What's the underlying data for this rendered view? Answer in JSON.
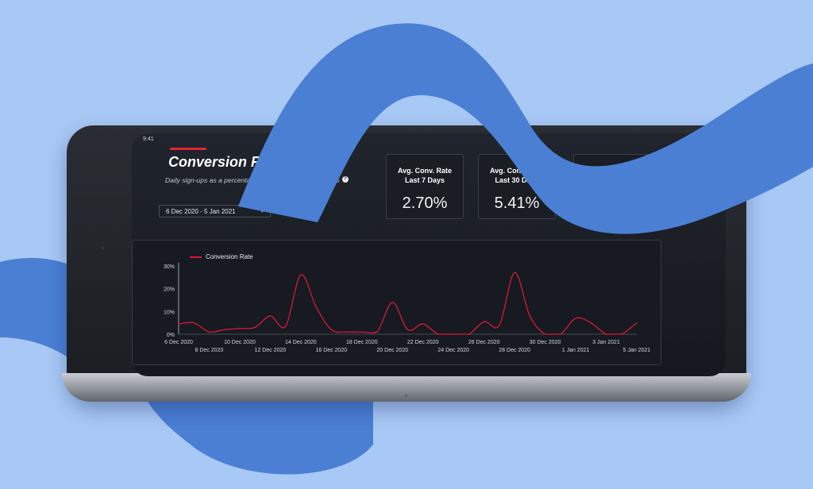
{
  "status_bar": {
    "time": "9:41",
    "icons": "•• ◔ ▭"
  },
  "header": {
    "title": "Conversion Rates",
    "subtitle": "Daily sign-ups as a percentage of daily non-member users",
    "help_icon": "question-circle-icon",
    "info_icon": "info-circle-icon"
  },
  "date_filter": {
    "value": "6 Dec 2020 - 5 Jan 2021",
    "icon": "caret-down-icon"
  },
  "stats": [
    {
      "label": "Avg. Conv. Rate Last 7 Days",
      "value": "2.70%"
    },
    {
      "label": "Avg. Conv. Rate Last 30 Days",
      "value": "5.41%"
    }
  ],
  "colors": {
    "accent": "#e2233b",
    "line": "#d7193a",
    "screen_bg": "#1b1e24",
    "card_border": "#3a3f48",
    "page_bg": "#a8c8f5",
    "wave": "#4a7fd4"
  },
  "chart_data": {
    "type": "line",
    "title": "",
    "xlabel": "",
    "ylabel": "",
    "ylim": [
      0,
      30
    ],
    "y_ticks": [
      "0%",
      "10%",
      "20%",
      "30%"
    ],
    "x": [
      "6 Dec 2020",
      "7 Dec 2020",
      "8 Dec 2020",
      "9 Dec 2020",
      "10 Dec 2020",
      "11 Dec 2020",
      "12 Dec 2020",
      "13 Dec 2020",
      "14 Dec 2020",
      "15 Dec 2020",
      "16 Dec 2020",
      "17 Dec 2020",
      "18 Dec 2020",
      "19 Dec 2020",
      "20 Dec 2020",
      "21 Dec 2020",
      "22 Dec 2020",
      "23 Dec 2020",
      "24 Dec 2020",
      "25 Dec 2020",
      "26 Dec 2020",
      "27 Dec 2020",
      "28 Dec 2020",
      "29 Dec 2020",
      "30 Dec 2020",
      "31 Dec 2020",
      "1 Jan 2021",
      "2 Jan 2021",
      "3 Jan 2021",
      "4 Jan 2021",
      "5 Jan 2021"
    ],
    "x_tick_labels": [
      "6 Dec 2020",
      "8 Dec 2020",
      "10 Dec 2020",
      "12 Dec 2020",
      "14 Dec 2020",
      "16 Dec 2020",
      "18 Dec 2020",
      "20 Dec 2020",
      "22 Dec 2020",
      "24 Dec 2020",
      "26 Dec 2020",
      "28 Dec 2020",
      "30 Dec 2020",
      "1 Jan 2021",
      "3 Jan 2021",
      "5 Jan 2021"
    ],
    "series": [
      {
        "name": "Conversion Rate",
        "values": [
          4.5,
          5,
          1,
          2,
          2.5,
          3,
          8,
          3.5,
          26,
          12,
          2,
          1,
          1,
          1,
          14,
          2,
          4.5,
          0,
          0,
          0,
          5.5,
          4,
          27,
          8,
          0,
          0,
          7,
          5,
          0,
          0,
          5
        ]
      }
    ],
    "grid": false,
    "legend": "top-left"
  }
}
